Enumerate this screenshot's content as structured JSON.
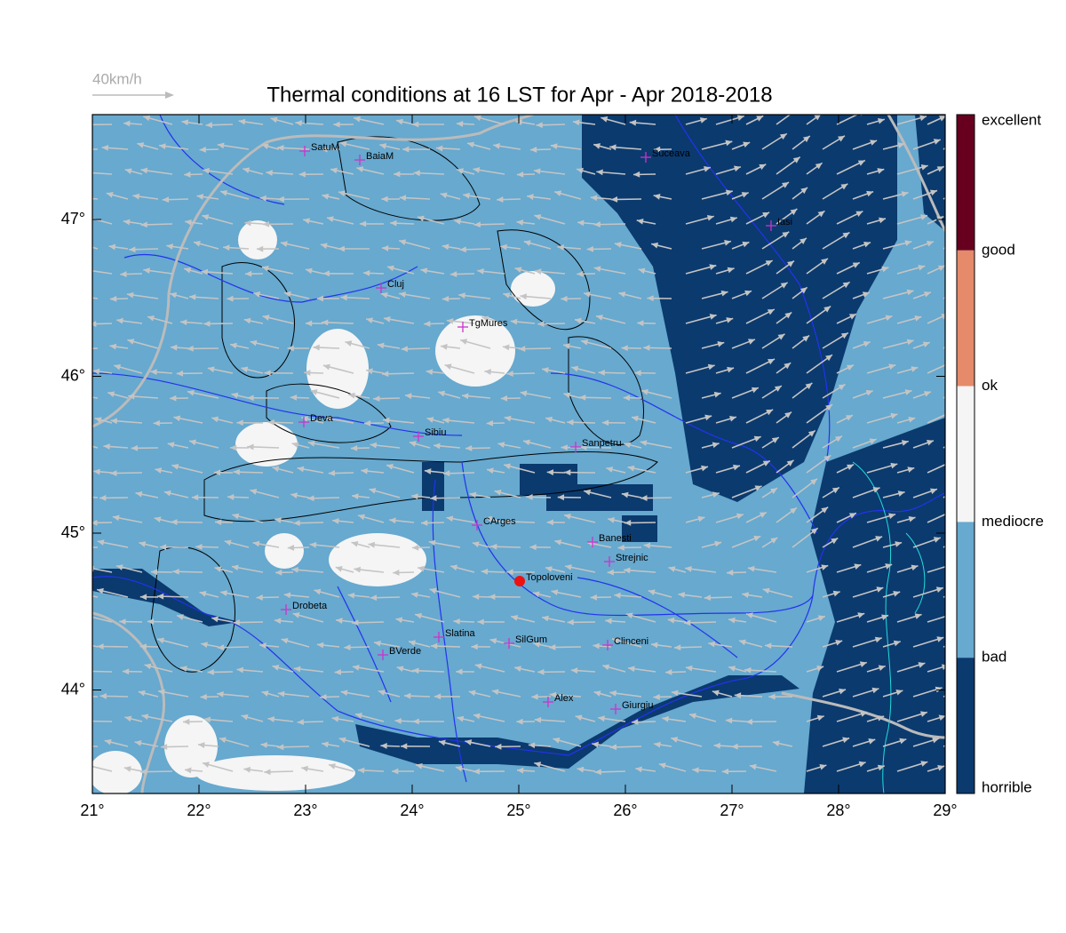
{
  "title": "Thermal conditions at 16 LST for Apr - Apr  2018-2018",
  "wind_legend": "40km/h",
  "lon_ticks": [
    {
      "value": 21,
      "label": "21°"
    },
    {
      "value": 22,
      "label": "22°"
    },
    {
      "value": 23,
      "label": "23°"
    },
    {
      "value": 24,
      "label": "24°"
    },
    {
      "value": 25,
      "label": "25°"
    },
    {
      "value": 26,
      "label": "26°"
    },
    {
      "value": 27,
      "label": "27°"
    },
    {
      "value": 28,
      "label": "28°"
    },
    {
      "value": 29,
      "label": "29°"
    }
  ],
  "lat_ticks": [
    {
      "value": 47,
      "label": "47°"
    },
    {
      "value": 46,
      "label": "46°"
    },
    {
      "value": 45,
      "label": "45°"
    },
    {
      "value": 44,
      "label": "44°"
    }
  ],
  "colorbar": {
    "labels": [
      "excellent",
      "good",
      "ok",
      "mediocre",
      "bad",
      "horrible"
    ],
    "colors": [
      "#67001f",
      "#e58a6a",
      "#f5f5f5",
      "#67a9cf",
      "#0b3a6e"
    ]
  },
  "cities": [
    "SatuM",
    "BaiaM",
    "Suceava",
    "Iasi",
    "Cluj",
    "TgMures",
    "Deva",
    "Sibiu",
    "Sanpetru",
    "CArges",
    "Banesti",
    "Strejnic",
    "Topoloveni",
    "Drobeta",
    "Slatina",
    "SilGum",
    "Clinceni",
    "BVerde",
    "Alex",
    "Giurgiu"
  ]
}
